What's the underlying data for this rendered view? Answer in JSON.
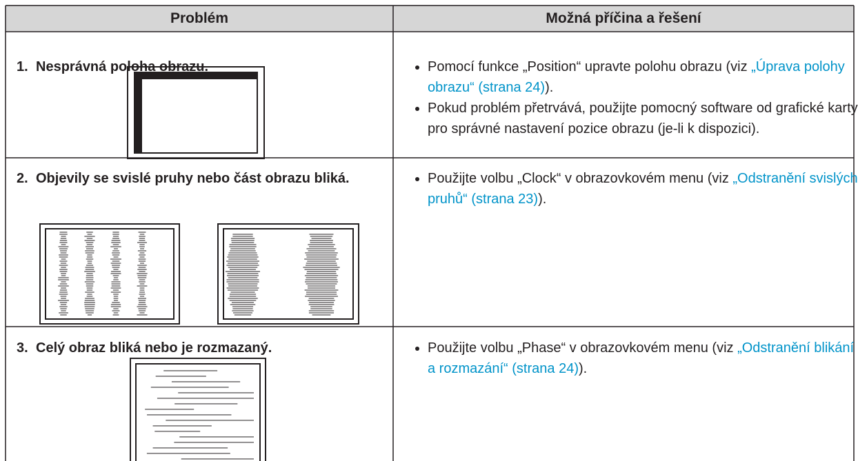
{
  "table": {
    "header": [
      "Problém",
      "Možná příčina a řešení"
    ],
    "rows": [
      {
        "number": "1.",
        "problem": "Nesprávná poloha obrazu.",
        "solutions": [
          {
            "text": "Pomocí funkce „Position“ upravte polohu obrazu (viz ",
            "link": "„Úprava polohy obrazu“ (strana 24)",
            "after": ")."
          },
          {
            "text": "Pokud problém přetrvává, použijte pomocný software od grafické karty pro správné nastavení pozice obrazu (je-li k dispozici)."
          }
        ]
      },
      {
        "number": "2.",
        "problem": "Objevily se svislé pruhy nebo část obrazu bliká.",
        "solutions": [
          {
            "text": "Použijte volbu „Clock“ v obrazovkovém menu (viz ",
            "link": "„Odstranění svislých pruhů“ (strana 23)",
            "after": ")."
          }
        ]
      },
      {
        "number": "3.",
        "problem": "Celý obraz bliká nebo je rozmazaný.",
        "solutions": [
          {
            "text": "Použijte volbu „Phase“ v obrazovkovém menu (viz ",
            "link": "„Odstranění blikání a rozmazání“ (strana 24)",
            "after": ")."
          }
        ]
      }
    ]
  }
}
